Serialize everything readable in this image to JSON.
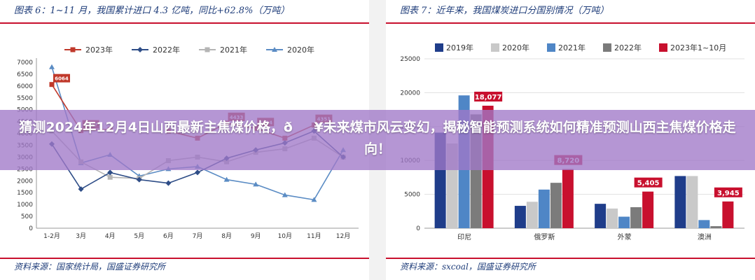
{
  "headline": "猜测2024年12月4日山西最新主焦煤价格，ð¥未来煤市风云变幻，揭秘智能预测系统如何精准预测山西主焦煤价格走向！",
  "left_panel": {
    "title": "图表 6：1~11 月，我国累计进口 4.3 亿吨，同比+62.8%（万吨）",
    "source": "资料来源：国家统计局，国盛证券研究所"
  },
  "right_panel": {
    "title": "图表 7：近年来，我国煤炭进口分国别情况（万吨）",
    "source": "资料来源：sxcoal，国盛证券研究所"
  },
  "chart_data": [
    {
      "type": "line",
      "x": [
        "1-2月",
        "3月",
        "4月",
        "5月",
        "6月",
        "7月",
        "8月",
        "9月",
        "10月",
        "11月",
        "12月"
      ],
      "ylim": [
        0,
        7000
      ],
      "yticks": [
        0,
        500,
        1000,
        1500,
        2000,
        2500,
        3000,
        3500,
        4000,
        4500,
        5000,
        5500,
        6000,
        6500,
        7000
      ],
      "series": [
        {
          "name": "2023年",
          "color": "#c0392b",
          "marker": "square",
          "values": [
            6064,
            4117,
            4170,
            null,
            4100,
            3800,
            4433,
            4214,
            3800,
            4351,
            null
          ],
          "labels": {
            "0": "6064",
            "1": "4117",
            "6": "4433",
            "7": "4214",
            "9": "4351"
          }
        },
        {
          "name": "2022年",
          "color": "#2e4d87",
          "marker": "diamond",
          "values": [
            3550,
            1650,
            2350,
            2050,
            1900,
            2350,
            2950,
            3300,
            3600,
            4100,
            3000
          ]
        },
        {
          "name": "2021年",
          "color": "#b5b5b5",
          "marker": "square",
          "values": [
            4100,
            2800,
            2150,
            2100,
            2850,
            3000,
            2800,
            3200,
            3350,
            3800,
            3000
          ]
        },
        {
          "name": "2020年",
          "color": "#5b8cc4",
          "marker": "triangle",
          "values": [
            6800,
            2750,
            3100,
            2200,
            2500,
            2600,
            2050,
            1850,
            1400,
            1200,
            3300
          ]
        }
      ],
      "grid": false,
      "legend": "top"
    },
    {
      "type": "bar",
      "categories": [
        "印尼",
        "俄罗斯",
        "外蒙",
        "澳洲"
      ],
      "ylim": [
        0,
        25000
      ],
      "yticks": [
        0,
        5000,
        10000,
        15000,
        20000,
        25000
      ],
      "series": [
        {
          "name": "2019年",
          "color": "#1f3d8a",
          "values": [
            14100,
            3300,
            3600,
            7700
          ]
        },
        {
          "name": "2020年",
          "color": "#c9c9c9",
          "values": [
            12500,
            3900,
            2900,
            7700
          ]
        },
        {
          "name": "2021年",
          "color": "#4f86c6",
          "values": [
            19600,
            5700,
            1700,
            1200
          ]
        },
        {
          "name": "2022年",
          "color": "#7b7b7b",
          "values": [
            16800,
            6700,
            3100,
            300
          ]
        },
        {
          "name": "2023年1~10月",
          "color": "#c8102e",
          "values": [
            18077,
            8720,
            5405,
            3945
          ]
        }
      ],
      "data_labels": [
        "18,077",
        "8,720",
        "5,405",
        "3,945"
      ],
      "grid": true,
      "legend": "top"
    }
  ]
}
